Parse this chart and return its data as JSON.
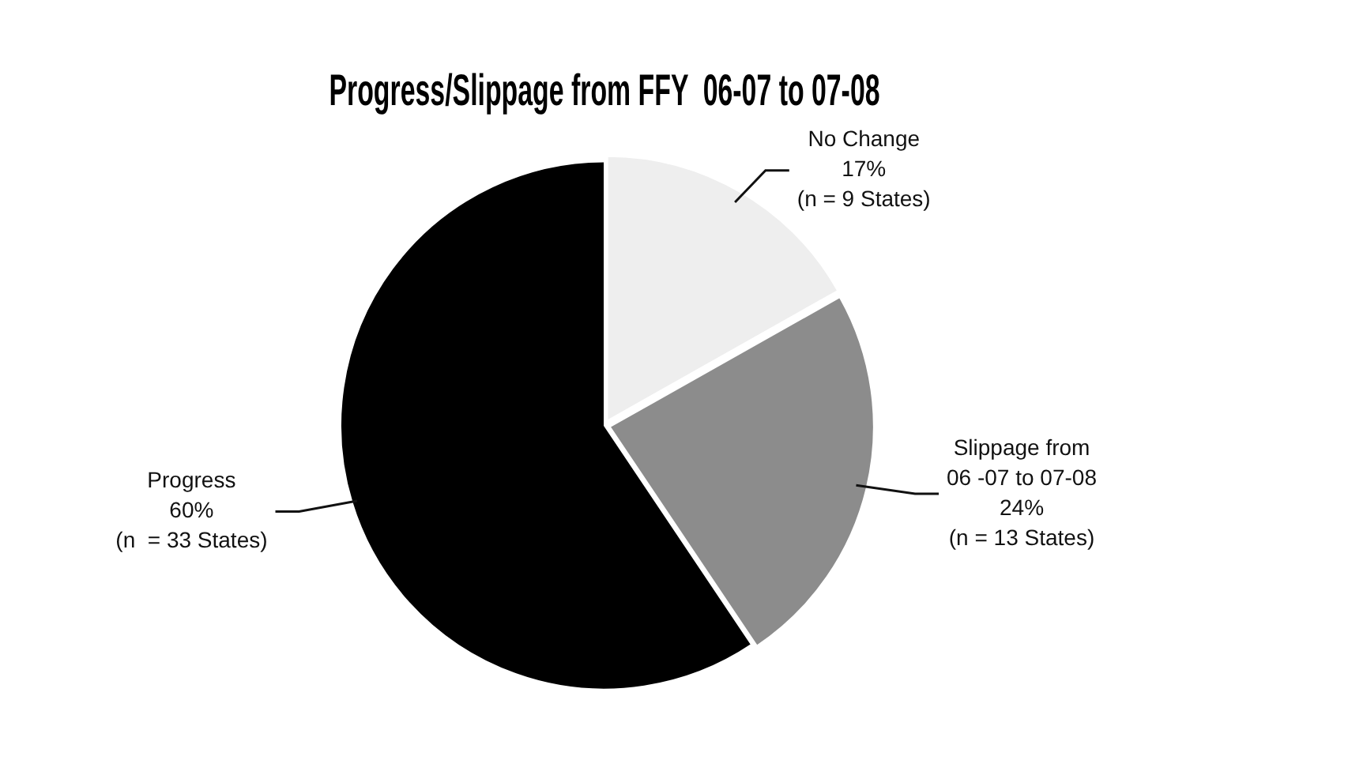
{
  "chart_data": {
    "type": "pie",
    "title": "Progress/Slippage from FFY  06-07 to 07-08",
    "categories": [
      "No Change",
      "Slippage from 06 -07 to 07-08",
      "Progress"
    ],
    "values": [
      17,
      24,
      60
    ],
    "colors": [
      "#eeeeee",
      "#8c8c8c",
      "#000000"
    ],
    "value_labels": [
      "17%",
      "24%",
      "60%"
    ],
    "annotations": [
      "(n = 9 States)",
      "(n = 13 States)",
      "(n  = 33 States)"
    ],
    "legend": false
  }
}
